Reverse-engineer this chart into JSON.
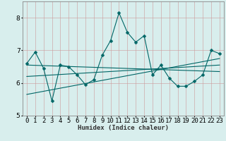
{
  "xlabel": "Humidex (Indice chaleur)",
  "background_color": "#d8eeed",
  "grid_color": "#b0cccc",
  "line_color": "#006666",
  "xlim": [
    -0.5,
    23.5
  ],
  "ylim": [
    5.0,
    8.5
  ],
  "yticks": [
    5,
    6,
    7,
    8
  ],
  "xtick_labels": [
    "0",
    "1",
    "2",
    "3",
    "4",
    "5",
    "6",
    "7",
    "8",
    "9",
    "10",
    "11",
    "12",
    "13",
    "14",
    "15",
    "16",
    "17",
    "18",
    "19",
    "20",
    "21",
    "22",
    "23"
  ],
  "series1_x": [
    0,
    1,
    2,
    3,
    4,
    5,
    6,
    7,
    8,
    9,
    10,
    11,
    12,
    13,
    14,
    15,
    16,
    17,
    18,
    19,
    20,
    21,
    22,
    23
  ],
  "series1_y": [
    6.6,
    6.95,
    6.45,
    5.45,
    6.55,
    6.5,
    6.25,
    5.95,
    6.1,
    6.85,
    7.3,
    8.15,
    7.55,
    7.25,
    7.45,
    6.25,
    6.55,
    6.15,
    5.9,
    5.9,
    6.05,
    6.25,
    7.0,
    6.9
  ],
  "trend1_x": [
    0,
    23
  ],
  "trend1_y": [
    6.2,
    6.55
  ],
  "trend2_x": [
    0,
    23
  ],
  "trend2_y": [
    5.65,
    6.75
  ],
  "trend3_x": [
    0,
    23
  ],
  "trend3_y": [
    6.55,
    6.35
  ],
  "marker_size": 2.5
}
